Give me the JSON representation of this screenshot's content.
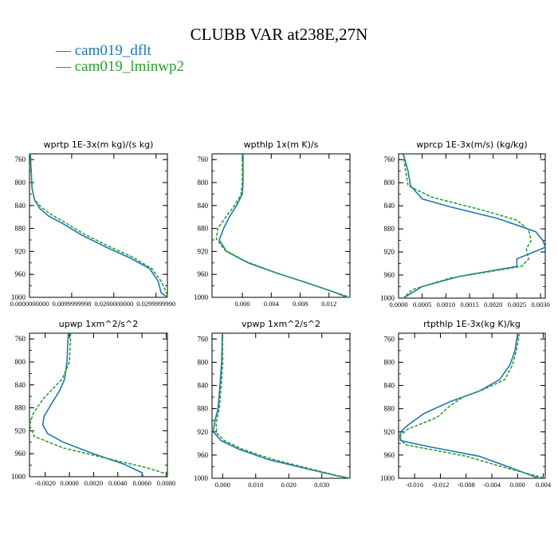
{
  "figure": {
    "title": "CLUBB VAR at238E,27N",
    "legend": [
      {
        "label": "— cam019_dflt",
        "color": "#1f77b4"
      },
      {
        "label": "— cam019_lminwp2",
        "color": "#2ca02c"
      }
    ]
  },
  "chart_data": [
    {
      "type": "line",
      "title": "wprtp  1E-3x(m kg)/(s kg)",
      "ylim": [
        1000,
        750
      ],
      "yticks": [
        760,
        800,
        840,
        880,
        920,
        960,
        1000
      ],
      "xlim": [
        0.0,
        0.0327
      ],
      "xticks": [
        0.0,
        0.01,
        0.02,
        0.03
      ],
      "xticklabels": [
        "0.0000000000",
        "0.0099999998",
        "0.0200000000",
        "0.0299999990"
      ],
      "series": [
        {
          "color": "#1f77b4",
          "dash": "",
          "points": [
            [
              0.0002,
              750
            ],
            [
              0.0004,
              780
            ],
            [
              0.0006,
              810
            ],
            [
              0.0012,
              830
            ],
            [
              0.0024,
              845
            ],
            [
              0.0045,
              858
            ],
            [
              0.008,
              872
            ],
            [
              0.0125,
              892
            ],
            [
              0.018,
              912
            ],
            [
              0.024,
              932
            ],
            [
              0.0285,
              950
            ],
            [
              0.0305,
              972
            ],
            [
              0.0312,
              992
            ],
            [
              0.0327,
              1000
            ]
          ]
        },
        {
          "color": "#2ca02c",
          "dash": "4,2",
          "points": [
            [
              0.0002,
              750
            ],
            [
              0.0004,
              780
            ],
            [
              0.0006,
              810
            ],
            [
              0.0012,
              830
            ],
            [
              0.0028,
              843
            ],
            [
              0.005,
              855
            ],
            [
              0.0085,
              870
            ],
            [
              0.013,
              890
            ],
            [
              0.0185,
              910
            ],
            [
              0.0245,
              930
            ],
            [
              0.029,
              950
            ],
            [
              0.0312,
              972
            ],
            [
              0.0325,
              992
            ],
            [
              0.0327,
              1000
            ]
          ]
        }
      ]
    },
    {
      "type": "line",
      "title": "wpthlp  1x(m K)/s",
      "ylim": [
        1000,
        750
      ],
      "yticks": [
        760,
        800,
        840,
        880,
        920,
        960,
        1000
      ],
      "xlim": [
        -0.0042,
        0.0149
      ],
      "xticks": [
        0.0,
        0.004,
        0.008,
        0.012
      ],
      "xticklabels": [
        "0.000",
        "0.004",
        "0.008",
        "0.012"
      ],
      "series": [
        {
          "color": "#1f77b4",
          "dash": "",
          "points": [
            [
              0.0001,
              750
            ],
            [
              0.0001,
              800
            ],
            [
              0.0,
              820
            ],
            [
              -0.0008,
              840
            ],
            [
              -0.0018,
              860
            ],
            [
              -0.0026,
              880
            ],
            [
              -0.0032,
              900
            ],
            [
              -0.0022,
              920
            ],
            [
              0.0008,
              940
            ],
            [
              0.0048,
              958
            ],
            [
              0.009,
              975
            ],
            [
              0.0125,
              990
            ],
            [
              0.0145,
              1000
            ]
          ]
        },
        {
          "color": "#2ca02c",
          "dash": "4,2",
          "points": [
            [
              0.0,
              750
            ],
            [
              0.0,
              800
            ],
            [
              -0.0002,
              822
            ],
            [
              -0.0012,
              842
            ],
            [
              -0.0024,
              862
            ],
            [
              -0.0034,
              880
            ],
            [
              -0.0036,
              898
            ],
            [
              -0.0024,
              918
            ],
            [
              0.0006,
              938
            ],
            [
              0.0046,
              957
            ],
            [
              0.0088,
              974
            ],
            [
              0.0125,
              990
            ],
            [
              0.0149,
              1000
            ]
          ]
        }
      ]
    },
    {
      "type": "line",
      "title": "wprcp  1E-3x(m/s) (kg/kg)",
      "ylim": [
        1000,
        750
      ],
      "yticks": [
        760,
        800,
        840,
        880,
        920,
        960,
        1000
      ],
      "xlim": [
        0.0,
        0.0031
      ],
      "xticks": [
        0.0,
        0.0005,
        0.001,
        0.0015,
        0.002,
        0.0025,
        0.003
      ],
      "xticklabels": [
        "0.0000",
        "0.0005",
        "0.0010",
        "0.0015",
        "0.0020",
        "0.0025",
        "0.0030"
      ],
      "series": [
        {
          "color": "#1f77b4",
          "dash": "",
          "points": [
            [
              0.0001,
              750
            ],
            [
              0.0002,
              780
            ],
            [
              0.00025,
              805
            ],
            [
              0.0005,
              828
            ],
            [
              0.0011,
              842
            ],
            [
              0.0021,
              862
            ],
            [
              0.0029,
              885
            ],
            [
              0.00305,
              900
            ],
            [
              0.0031,
              912
            ],
            [
              0.0025,
              932
            ],
            [
              0.0025,
              945
            ],
            [
              0.0013,
              962
            ],
            [
              0.0005,
              980
            ],
            [
              0.0001,
              1000
            ]
          ]
        },
        {
          "color": "#2ca02c",
          "dash": "4,2",
          "points": [
            [
              0.0001,
              750
            ],
            [
              0.00015,
              780
            ],
            [
              0.0002,
              805
            ],
            [
              0.0007,
              825
            ],
            [
              0.0018,
              848
            ],
            [
              0.0025,
              865
            ],
            [
              0.00275,
              882
            ],
            [
              0.0028,
              900
            ],
            [
              0.0027,
              915
            ],
            [
              0.00275,
              932
            ],
            [
              0.0026,
              945
            ],
            [
              0.0011,
              965
            ],
            [
              0.0003,
              985
            ],
            [
              0.0001,
              1000
            ]
          ]
        }
      ]
    },
    {
      "type": "line",
      "title": "upwp  1xm^2/s^2",
      "ylim": [
        1000,
        750
      ],
      "yticks": [
        760,
        800,
        840,
        880,
        920,
        960,
        1000
      ],
      "xlim": [
        -0.0033,
        0.0081
      ],
      "xticks": [
        -0.002,
        0.0,
        0.002,
        0.004,
        0.006,
        0.008
      ],
      "xticklabels": [
        "-0.0020",
        "0.0000",
        "0.0020",
        "0.0040",
        "0.0060",
        "0.0080"
      ],
      "series": [
        {
          "color": "#1f77b4",
          "dash": "",
          "points": [
            [
              -0.0001,
              750
            ],
            [
              -0.0002,
              800
            ],
            [
              -0.0004,
              830
            ],
            [
              -0.0008,
              850
            ],
            [
              -0.0014,
              870
            ],
            [
              -0.0021,
              895
            ],
            [
              -0.0022,
              910
            ],
            [
              -0.0018,
              925
            ],
            [
              -0.0005,
              940
            ],
            [
              0.002,
              960
            ],
            [
              0.0045,
              978
            ],
            [
              0.006,
              993
            ],
            [
              0.0061,
              1000
            ]
          ]
        },
        {
          "color": "#2ca02c",
          "dash": "4,2",
          "points": [
            [
              0.0001,
              750
            ],
            [
              0.0,
              800
            ],
            [
              -0.0006,
              830
            ],
            [
              -0.0013,
              845
            ],
            [
              -0.0022,
              865
            ],
            [
              -0.003,
              890
            ],
            [
              -0.0033,
              910
            ],
            [
              -0.0029,
              930
            ],
            [
              -0.0005,
              950
            ],
            [
              0.0035,
              970
            ],
            [
              0.0065,
              985
            ],
            [
              0.008,
              995
            ],
            [
              0.0081,
              1000
            ]
          ]
        }
      ]
    },
    {
      "type": "line",
      "title": "vpwp  1xm^2/s^2",
      "ylim": [
        1000,
        750
      ],
      "yticks": [
        760,
        800,
        840,
        880,
        920,
        960,
        1000
      ],
      "xlim": [
        -0.0032,
        0.0385
      ],
      "xticks": [
        0.0,
        0.01,
        0.02,
        0.03
      ],
      "xticklabels": [
        "0.000",
        "0.010",
        "0.020",
        "0.030"
      ],
      "series": [
        {
          "color": "#1f77b4",
          "dash": "",
          "points": [
            [
              -0.0001,
              750
            ],
            [
              -0.0003,
              800
            ],
            [
              -0.0008,
              840
            ],
            [
              -0.0014,
              880
            ],
            [
              -0.0025,
              905
            ],
            [
              -0.0028,
              920
            ],
            [
              -0.0005,
              935
            ],
            [
              0.005,
              950
            ],
            [
              0.014,
              968
            ],
            [
              0.025,
              983
            ],
            [
              0.034,
              995
            ],
            [
              0.0385,
              1000
            ]
          ]
        },
        {
          "color": "#2ca02c",
          "dash": "4,2",
          "points": [
            [
              0.0,
              750
            ],
            [
              0.0,
              800
            ],
            [
              -0.0004,
              840
            ],
            [
              -0.001,
              880
            ],
            [
              -0.002,
              905
            ],
            [
              -0.0018,
              922
            ],
            [
              0.0005,
              935
            ],
            [
              0.006,
              950
            ],
            [
              0.015,
              967
            ],
            [
              0.026,
              983
            ],
            [
              0.0345,
              995
            ],
            [
              0.0385,
              1000
            ]
          ]
        }
      ]
    },
    {
      "type": "line",
      "title": "rtpthlp  1E-3x(kg K)/kg",
      "ylim": [
        1000,
        750
      ],
      "yticks": [
        760,
        800,
        840,
        880,
        920,
        960,
        1000
      ],
      "xlim": [
        -0.0185,
        0.0043
      ],
      "xticks": [
        -0.016,
        -0.012,
        -0.008,
        -0.004,
        0.0,
        0.004
      ],
      "xticklabels": [
        "-0.016",
        "-0.012",
        "-0.008",
        "-0.004",
        "0.000",
        "0.004"
      ],
      "series": [
        {
          "color": "#1f77b4",
          "dash": "",
          "points": [
            [
              0.0,
              750
            ],
            [
              -0.0004,
              780
            ],
            [
              -0.0012,
              805
            ],
            [
              -0.0028,
              830
            ],
            [
              -0.006,
              850
            ],
            [
              -0.0105,
              868
            ],
            [
              -0.0145,
              888
            ],
            [
              -0.017,
              908
            ],
            [
              -0.0182,
              920
            ],
            [
              -0.0182,
              935
            ],
            [
              -0.014,
              945
            ],
            [
              -0.006,
              962
            ],
            [
              -0.0015,
              980
            ],
            [
              0.0033,
              1000
            ]
          ]
        },
        {
          "color": "#2ca02c",
          "dash": "4,2",
          "points": [
            [
              0.0003,
              750
            ],
            [
              -0.0002,
              780
            ],
            [
              -0.0008,
              805
            ],
            [
              -0.002,
              830
            ],
            [
              -0.0055,
              848
            ],
            [
              -0.0085,
              860
            ],
            [
              -0.0105,
              875
            ],
            [
              -0.0125,
              895
            ],
            [
              -0.017,
              915
            ],
            [
              -0.0185,
              928
            ],
            [
              -0.0175,
              942
            ],
            [
              -0.008,
              962
            ],
            [
              -0.0025,
              980
            ],
            [
              0.0043,
              1000
            ]
          ]
        }
      ]
    }
  ]
}
